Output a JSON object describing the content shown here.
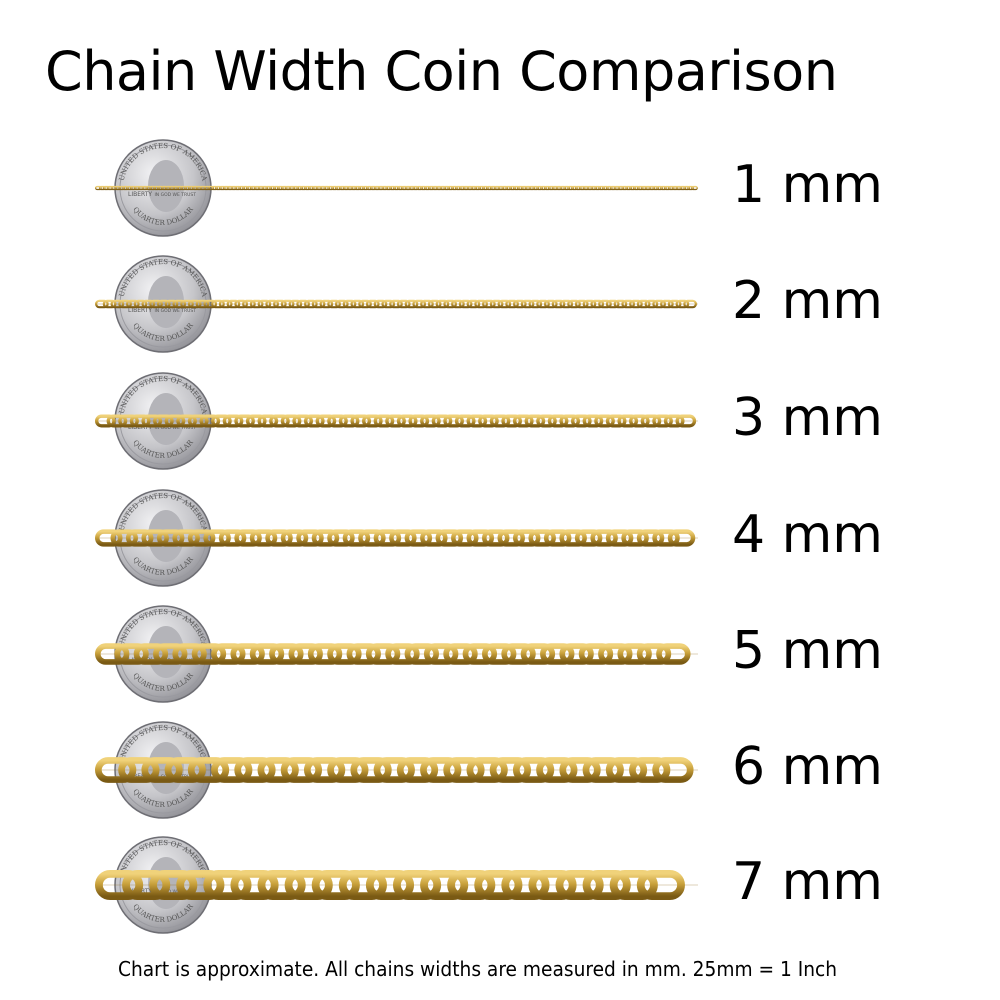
{
  "title": "Chain Width Coin Comparison",
  "coin": {
    "top_text": "UNITED STATES OF AMERICA",
    "left_text": "LIBERTY",
    "right_text": "IN GOD WE TRUST",
    "bottom_text": "QUARTER DOLLAR"
  },
  "rows": [
    {
      "width_mm": 1,
      "label": "1 mm"
    },
    {
      "width_mm": 2,
      "label": "2 mm"
    },
    {
      "width_mm": 3,
      "label": "3 mm"
    },
    {
      "width_mm": 4,
      "label": "4 mm"
    },
    {
      "width_mm": 5,
      "label": "5 mm"
    },
    {
      "width_mm": 6,
      "label": "6 mm"
    },
    {
      "width_mm": 7,
      "label": "7 mm"
    }
  ],
  "colors": {
    "chain": "#c9a13b",
    "chain_dark": "#8a6a1c",
    "coin": "#c8c8cc"
  },
  "footnote": "Chart is approximate. All chains widths are measured in mm.  25mm = 1 Inch"
}
